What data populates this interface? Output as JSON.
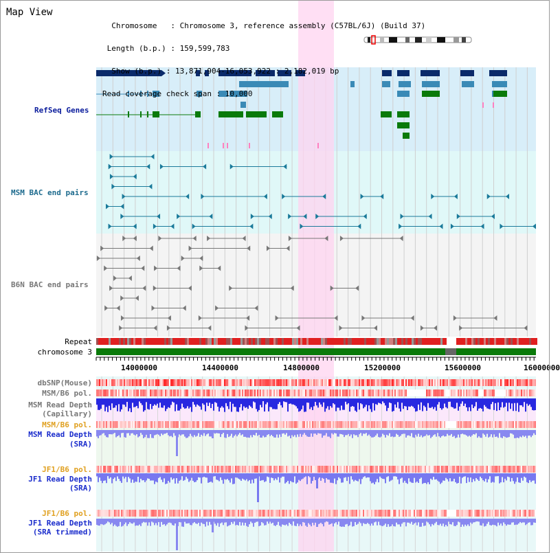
{
  "header": {
    "title": "Map View",
    "info_lines": [
      "  Chromosome   : Chromosome 3, reference assembly (C57BL/6J) (Build 37)",
      " Length (b.p.) : 159,599,783",
      "  Show (b.p.) : 13,871,904-16,053,922 : 2,182,019 bp",
      "Read coverage check span : 10,000"
    ]
  },
  "tracks": {
    "refseq": "RefSeq Genes",
    "msm_bac": "MSM BAC end pairs",
    "b6n_bac": "B6N BAC end pairs",
    "repeat": "Repeat",
    "chromosome": "chromosome 3",
    "dbsnp": "dbSNP(Mouse)",
    "msm_b6_pol_1": "MSM/B6 pol.",
    "msm_read_depth_cap_1": "MSM Read Depth",
    "msm_read_depth_cap_2": "(Capillary)",
    "msm_b6_pol_2": "MSM/B6 pol.",
    "msm_read_depth_sra_1": "MSM Read Depth",
    "msm_read_depth_sra_2": "(SRA)",
    "jf1_b6_pol_1": "JF1/B6 pol.",
    "jf1_read_depth_sra_1": "JF1 Read Depth",
    "jf1_read_depth_sra_2": "(SRA)",
    "jf1_b6_pol_2": "JF1/B6 pol.",
    "jf1_read_depth_trim_1": "JF1 Read Depth",
    "jf1_read_depth_trim_2": "(SRA trimmed)"
  },
  "axis": {
    "ticks": [
      "14000000",
      "14400000",
      "14800000",
      "15200000",
      "15600000",
      "16000000"
    ]
  },
  "colors": {
    "refseq_bg": "#d8eef9",
    "bac_bg": "#e0f8f8",
    "b6n_bg": "#f4f4f4",
    "highlight": "#ffd4f0",
    "navy_gene": "#0a2a6a",
    "steel_gene": "#3a8ab6",
    "green_gene": "#0a7a0a",
    "chromosome_bar": "#0a7a0a",
    "repeat_red": "#e02020",
    "read_depth_blue": "#2020e0"
  }
}
